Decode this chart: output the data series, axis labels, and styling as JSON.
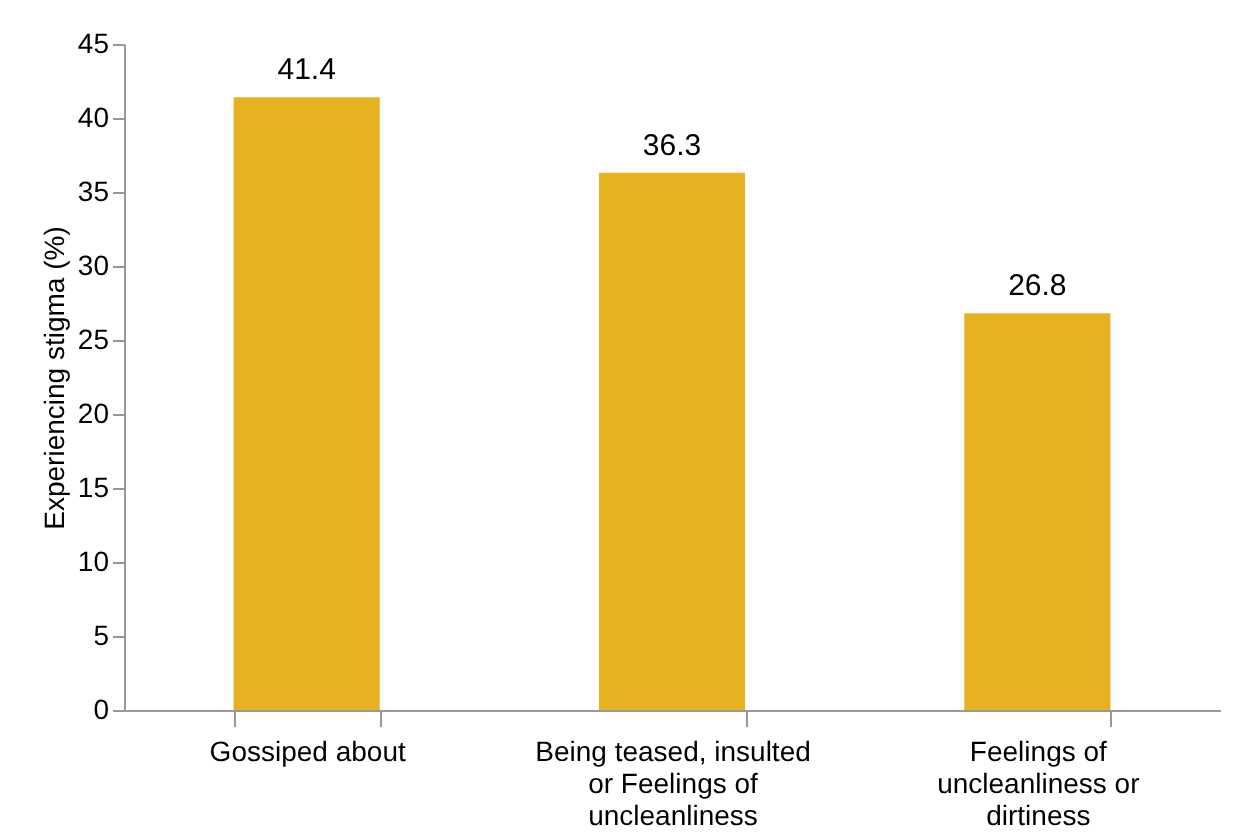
{
  "chart_data": {
    "type": "bar",
    "ylabel": "Experiencing stigma (%)",
    "categories": [
      "Gossiped about",
      "Being teased, insulted or Feelings of uncleanliness",
      "Feelings of uncleanliness or dirtiness"
    ],
    "values": [
      41.4,
      36.3,
      26.8
    ],
    "color": "#e6b222",
    "data_labels": true,
    "ylim": [
      0,
      45
    ],
    "yticks": [
      0,
      5,
      10,
      15,
      20,
      25,
      30,
      35,
      40,
      45
    ],
    "grid": false
  }
}
